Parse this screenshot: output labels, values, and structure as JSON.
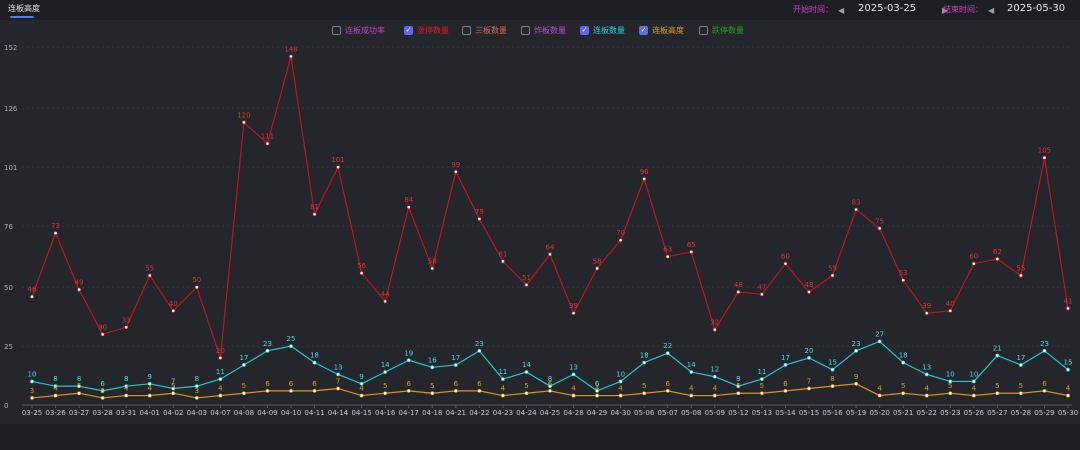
{
  "header": {
    "tab_label": "连板高度",
    "start_label": "开始时间：",
    "start_value": "2025-03-25",
    "end_label": "结束时间：",
    "end_value": "2025-05-30"
  },
  "legend": [
    {
      "label": "连板成功率",
      "color": "#c93fc9",
      "checked": false
    },
    {
      "label": "涨停数量",
      "color": "#e02020",
      "checked": true
    },
    {
      "label": "三板数量",
      "color": "#e06a50",
      "checked": false
    },
    {
      "label": "炸板数量",
      "color": "#c04ad0",
      "checked": false
    },
    {
      "label": "连板数量",
      "color": "#26d2d2",
      "checked": true
    },
    {
      "label": "连板高度",
      "color": "#e0a020",
      "checked": true
    },
    {
      "label": "跌停数量",
      "color": "#21a121",
      "checked": false
    }
  ],
  "chart_data": {
    "type": "line",
    "categories": [
      "03-25",
      "03-26",
      "03-27",
      "03-28",
      "03-31",
      "04-01",
      "04-02",
      "04-03",
      "04-07",
      "04-08",
      "04-09",
      "04-10",
      "04-11",
      "04-14",
      "04-15",
      "04-16",
      "04-17",
      "04-18",
      "04-21",
      "04-22",
      "04-23",
      "04-24",
      "04-25",
      "04-28",
      "04-29",
      "04-30",
      "05-06",
      "05-07",
      "05-08",
      "05-09",
      "05-12",
      "05-13",
      "05-14",
      "05-15",
      "05-16",
      "05-19",
      "05-20",
      "05-21",
      "05-22",
      "05-23",
      "05-26",
      "05-27",
      "05-28",
      "05-29",
      "05-30"
    ],
    "y_ticks": [
      0,
      25,
      50,
      76,
      101,
      126,
      152
    ],
    "ylim": [
      0,
      152
    ],
    "series": [
      {
        "name": "涨停数量",
        "color": "#b81c1c",
        "label_color": "#e03434",
        "label_offset": 0,
        "values": [
          46,
          73,
          49,
          30,
          33,
          55,
          40,
          50,
          20,
          120,
          111,
          148,
          81,
          101,
          56,
          44,
          84,
          58,
          99,
          79,
          61,
          51,
          64,
          39,
          58,
          70,
          96,
          63,
          65,
          32,
          48,
          47,
          60,
          48,
          55,
          83,
          75,
          53,
          39,
          40,
          60,
          62,
          55,
          105,
          41
        ]
      },
      {
        "name": "连板数量",
        "color": "#22c8c8",
        "label_color": "#3ee0e0",
        "label_offset": 0,
        "values": [
          10,
          8,
          8,
          6,
          8,
          9,
          7,
          8,
          11,
          17,
          23,
          25,
          18,
          13,
          9,
          14,
          19,
          16,
          17,
          23,
          11,
          14,
          8,
          13,
          6,
          10,
          18,
          22,
          14,
          12,
          8,
          11,
          17,
          20,
          15,
          23,
          27,
          18,
          13,
          10,
          10,
          21,
          17,
          23,
          15
        ]
      },
      {
        "name": "连板高度",
        "color": "#d89618",
        "label_color": "#e0a020",
        "label_offset": 0,
        "values": [
          3,
          4,
          5,
          3,
          4,
          4,
          5,
          3,
          4,
          5,
          6,
          6,
          6,
          7,
          4,
          5,
          6,
          5,
          6,
          6,
          4,
          5,
          6,
          4,
          4,
          4,
          5,
          6,
          4,
          4,
          5,
          5,
          6,
          7,
          8,
          9,
          4,
          5,
          4,
          5,
          4,
          5,
          5,
          6,
          4
        ]
      }
    ]
  }
}
